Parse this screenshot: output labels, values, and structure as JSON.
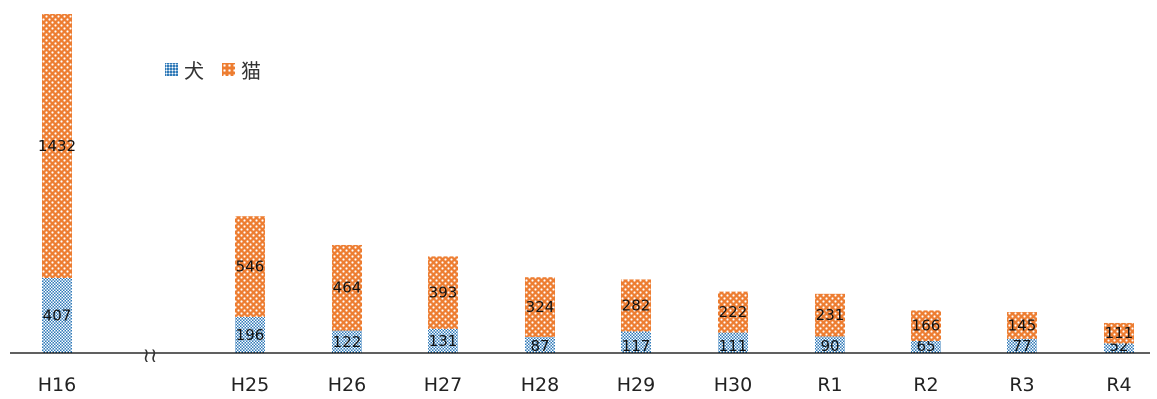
{
  "chart_data": {
    "type": "bar",
    "stacked": true,
    "categories": [
      "H16",
      "H25",
      "H26",
      "H27",
      "H28",
      "H29",
      "H30",
      "R1",
      "R2",
      "R3",
      "R4"
    ],
    "series": [
      {
        "name": "犬",
        "values": [
          407,
          196,
          122,
          131,
          87,
          117,
          111,
          90,
          65,
          77,
          52
        ],
        "color": "#2f7ab8",
        "pattern": "fine-check"
      },
      {
        "name": "猫",
        "values": [
          1432,
          546,
          464,
          393,
          324,
          282,
          222,
          231,
          166,
          145,
          111
        ],
        "color": "#ed7d31",
        "pattern": "white-dots"
      }
    ],
    "axis_break": {
      "between": [
        "H16",
        "H25"
      ],
      "symbol": "≀≀"
    },
    "y_axis_visible": false,
    "grid": false,
    "legend_position": "top-left"
  }
}
